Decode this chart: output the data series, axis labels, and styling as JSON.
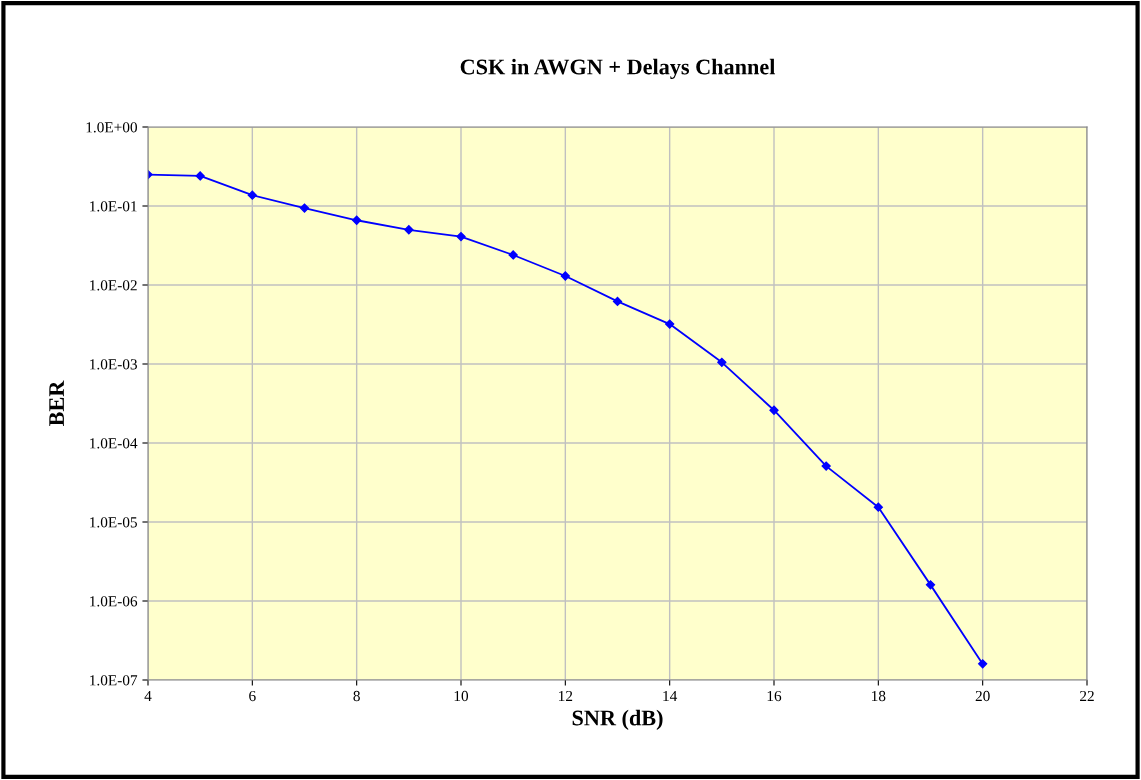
{
  "chart_data": {
    "type": "line",
    "title": "CSK in AWGN + Delays Channel",
    "xlabel": "SNR (dB)",
    "ylabel": "BER",
    "x": [
      4,
      5,
      6,
      7,
      8,
      9,
      10,
      11,
      12,
      13,
      14,
      15,
      16,
      17,
      18,
      19,
      20
    ],
    "series": [
      {
        "color": "#0000ff",
        "values": [
          0.25,
          0.24,
          0.137,
          0.094,
          0.066,
          0.05,
          0.041,
          0.024,
          0.013,
          0.0062,
          0.0032,
          0.00105,
          0.00026,
          5.1e-05,
          1.54e-05,
          1.6e-06,
          1.6e-07
        ]
      }
    ],
    "log": "y",
    "xlim": [
      4,
      22
    ],
    "xticks": [
      4,
      6,
      8,
      10,
      12,
      14,
      16,
      18,
      20,
      22
    ],
    "ylim": [
      1e-07,
      1
    ],
    "yticks": [
      {
        "value": 1e-07,
        "label": "1.0E-07"
      },
      {
        "value": 1e-06,
        "label": "1.0E-06"
      },
      {
        "value": 1e-05,
        "label": "1.0E-05"
      },
      {
        "value": 0.0001,
        "label": "1.0E-04"
      },
      {
        "value": 0.001,
        "label": "1.0E-03"
      },
      {
        "value": 0.01,
        "label": "1.0E-02"
      },
      {
        "value": 0.1,
        "label": "1.0E-01"
      },
      {
        "value": 1,
        "label": "1.0E+00"
      }
    ],
    "grid": true,
    "marker": "diamond",
    "line_style": "solid"
  }
}
